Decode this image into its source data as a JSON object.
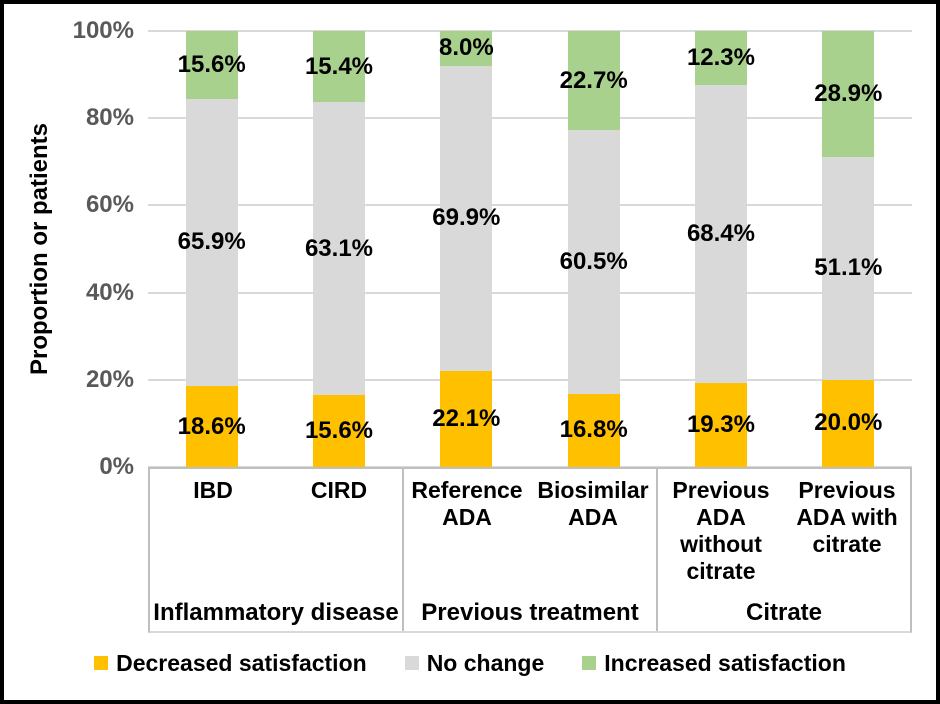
{
  "chart_data": {
    "type": "bar",
    "variant": "stacked-100-percent",
    "title": "",
    "ylabel": "Proportion or patients",
    "xlabel": "",
    "ylim": [
      0,
      100
    ],
    "y_ticks": [
      "0%",
      "20%",
      "40%",
      "60%",
      "80%",
      "100%"
    ],
    "grid": true,
    "legend_position": "bottom",
    "series_names": [
      "Decreased satisfaction",
      "No change",
      "Increased satisfaction"
    ],
    "series_colors": [
      "#FFC000",
      "#D9D9D9",
      "#A9D18E"
    ],
    "groups": [
      {
        "label": "Inflammatory disease",
        "categories": [
          "IBD",
          "CIRD"
        ]
      },
      {
        "label": "Previous treatment",
        "categories": [
          "Reference\nADA",
          "Biosimilar\nADA"
        ]
      },
      {
        "label": "Citrate",
        "categories": [
          "Previous\nADA\nwithout\ncitrate",
          "Previous\nADA with\ncitrate"
        ]
      }
    ],
    "bars": [
      {
        "category": "IBD",
        "group": "Inflammatory disease",
        "decreased": 18.6,
        "no_change": 65.9,
        "increased": 15.6
      },
      {
        "category": "CIRD",
        "group": "Inflammatory disease",
        "decreased": 15.6,
        "no_change": 63.1,
        "increased": 15.4
      },
      {
        "category": "Reference ADA",
        "group": "Previous treatment",
        "decreased": 22.1,
        "no_change": 69.9,
        "increased": 8.0
      },
      {
        "category": "Biosimilar ADA",
        "group": "Previous treatment",
        "decreased": 16.8,
        "no_change": 60.5,
        "increased": 22.7
      },
      {
        "category": "Previous ADA without citrate",
        "group": "Citrate",
        "decreased": 19.3,
        "no_change": 68.4,
        "increased": 12.3
      },
      {
        "category": "Previous ADA with citrate",
        "group": "Citrate",
        "decreased": 20.0,
        "no_change": 51.1,
        "increased": 28.9
      }
    ],
    "value_label_format": "one-decimal-percent"
  },
  "axis_style": {
    "tick_color": "#595959",
    "gridline_color": "#D9D9D9",
    "frame_line_color": "#BFBFBF"
  }
}
